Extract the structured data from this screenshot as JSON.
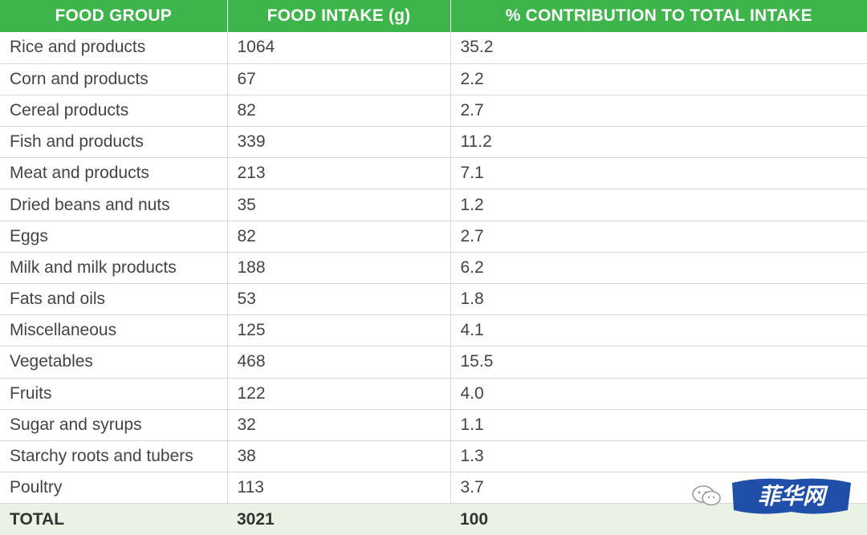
{
  "table": {
    "headers": [
      "FOOD GROUP",
      "FOOD INTAKE (g)",
      "% CONTRIBUTION TO TOTAL INTAKE"
    ],
    "rows": [
      [
        "Rice and products",
        "1064",
        "35.2"
      ],
      [
        "Corn and products",
        "67",
        "2.2"
      ],
      [
        "Cereal products",
        "82",
        "2.7"
      ],
      [
        "Fish and products",
        "339",
        "11.2"
      ],
      [
        "Meat and products",
        "213",
        "7.1"
      ],
      [
        "Dried beans and nuts",
        "35",
        "1.2"
      ],
      [
        "Eggs",
        "82",
        "2.7"
      ],
      [
        "Milk and milk products",
        "188",
        "6.2"
      ],
      [
        "Fats and oils",
        "53",
        "1.8"
      ],
      [
        "Miscellaneous",
        "125",
        "4.1"
      ],
      [
        "Vegetables",
        "468",
        "15.5"
      ],
      [
        "Fruits",
        "122",
        "4.0"
      ],
      [
        "Sugar and syrups",
        "32",
        "1.1"
      ],
      [
        "Starchy roots and tubers",
        "38",
        "1.3"
      ],
      [
        "Poultry",
        "113",
        "3.7"
      ]
    ],
    "total": [
      "TOTAL",
      "3021",
      "100"
    ]
  },
  "watermark": {
    "text": "菲华网",
    "icon": "wechat-bubble-icon"
  },
  "colors": {
    "header_bg": "#3db54a",
    "total_bg": "#e9f2e4",
    "watermark_blue": "#1f4fa8"
  }
}
